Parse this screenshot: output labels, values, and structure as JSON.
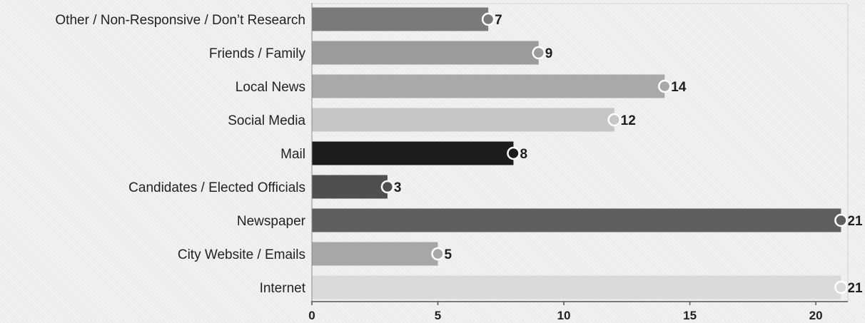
{
  "chart_data": {
    "type": "bar",
    "orientation": "horizontal",
    "title": "",
    "xlabel": "",
    "ylabel": "",
    "categories": [
      "Other / Non-Responsive / Don’t Research",
      "Friends / Family",
      "Local News",
      "Social Media",
      "Mail",
      "Candidates / Elected Officials",
      "Newspaper",
      "City Website / Emails",
      "Internet"
    ],
    "values": [
      7,
      9,
      14,
      12,
      8,
      3,
      21,
      5,
      21
    ],
    "bar_colors": [
      "#7a7a7a",
      "#9b9b9b",
      "#a9a9a9",
      "#c5c5c5",
      "#1c1c1c",
      "#4f4f4f",
      "#5e5e5e",
      "#a7a7a7",
      "#dadada"
    ],
    "dot_colors": [
      "#7a7a7a",
      "#9b9b9b",
      "#a9a9a9",
      "#c5c5c5",
      "#1c1c1c",
      "#4f4f4f",
      "#5e5e5e",
      "#a7a7a7",
      "#dadada"
    ],
    "xlim": [
      0,
      21.3
    ],
    "xticks": [
      0,
      5,
      10,
      15,
      20
    ],
    "xtick_labels": [
      "0",
      "5",
      "10",
      "15",
      "20"
    ],
    "grid": false,
    "legend": "none",
    "data_labels": true
  }
}
